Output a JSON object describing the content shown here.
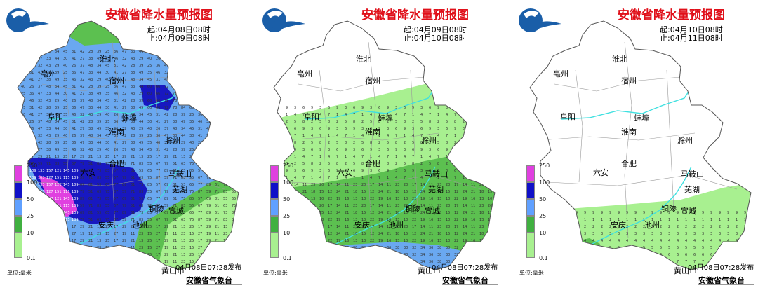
{
  "panels": [
    {
      "title": "安徽省降水量预报图",
      "start": "起:04月08日08时",
      "end": "止:04月09日08时",
      "published": "04月08日07:28发布",
      "agency": "安徽省气象台",
      "unit": "单位:毫米"
    },
    {
      "title": "安徽省降水量预报图",
      "start": "起:04月09日08时",
      "end": "止:04月10日08时",
      "published": "04月08日07:28发布",
      "agency": "安徽省气象台",
      "unit": "单位:毫米"
    },
    {
      "title": "安徽省降水量预报图",
      "start": "起:04月10日08时",
      "end": "止:04月11日08时",
      "published": "04月08日07:28发布",
      "agency": "安徽省气象台",
      "unit": "单位:毫米"
    }
  ],
  "legend": {
    "labels": [
      "250",
      "100",
      "50",
      "25",
      "10",
      "0.1"
    ],
    "colors": [
      "#e040e0",
      "#1010c8",
      "#60a0ff",
      "#40b040",
      "#a8f090"
    ]
  },
  "cities": [
    "淮北",
    "亳州",
    "宿州",
    "阜阳",
    "蚌埠",
    "淮南",
    "滁州",
    "合肥",
    "六安",
    "马鞍山",
    "芜湖",
    "铜陵",
    "宣城",
    "安庆",
    "池州",
    "黄山市"
  ],
  "colors": {
    "title": "#e0101a",
    "light_rain": "#a8f090",
    "moderate_rain": "#5cc050",
    "heavy_rain": "#6aa8f0",
    "rainstorm": "#1818c0",
    "torrential": "#e040e0",
    "river": "#40e0e0"
  }
}
